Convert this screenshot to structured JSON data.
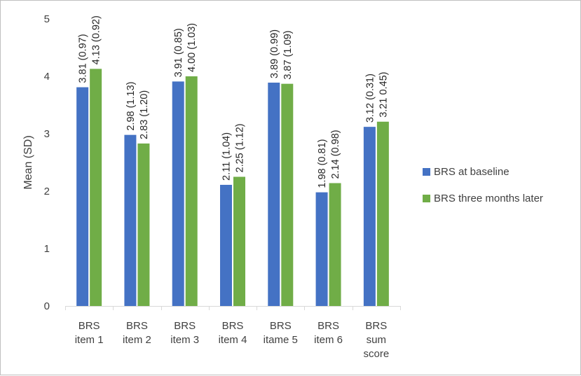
{
  "chart_data": {
    "type": "bar",
    "ylabel": "Mean (SD)",
    "ylim": [
      0,
      5
    ],
    "yticks": [
      0,
      1,
      2,
      3,
      4,
      5
    ],
    "grid": false,
    "legend_position": "right",
    "categories": [
      [
        "BRS",
        "item 1"
      ],
      [
        "BRS",
        "item 2"
      ],
      [
        "BRS",
        "item 3"
      ],
      [
        "BRS",
        "item 4"
      ],
      [
        "BRS",
        "itame 5"
      ],
      [
        "BRS",
        "item 6"
      ],
      [
        "BRS",
        "sum",
        "score"
      ]
    ],
    "series": [
      {
        "name": "BRS at baseline",
        "color": "#4472c4",
        "values": [
          3.81,
          2.98,
          3.91,
          2.11,
          3.89,
          1.98,
          3.12
        ],
        "labels": [
          "3.81 (0.97)",
          "2.98 (1.13)",
          "3.91 (0.85)",
          "2.11 (1.04)",
          "3.89 (0.99)",
          "1.98 (0.81)",
          "3.12 (0.31)"
        ]
      },
      {
        "name": "BRS three months later",
        "color": "#70ad47",
        "values": [
          4.13,
          2.83,
          4.0,
          2.25,
          3.87,
          2.14,
          3.21
        ],
        "labels": [
          "4.13 (0.92)",
          "2.83 (1.20)",
          "4.00 (1.03)",
          "2.25 (1.12)",
          "3.87 (1.09)",
          "2.14 (0.98)",
          "3.21 0.45)"
        ]
      }
    ]
  }
}
